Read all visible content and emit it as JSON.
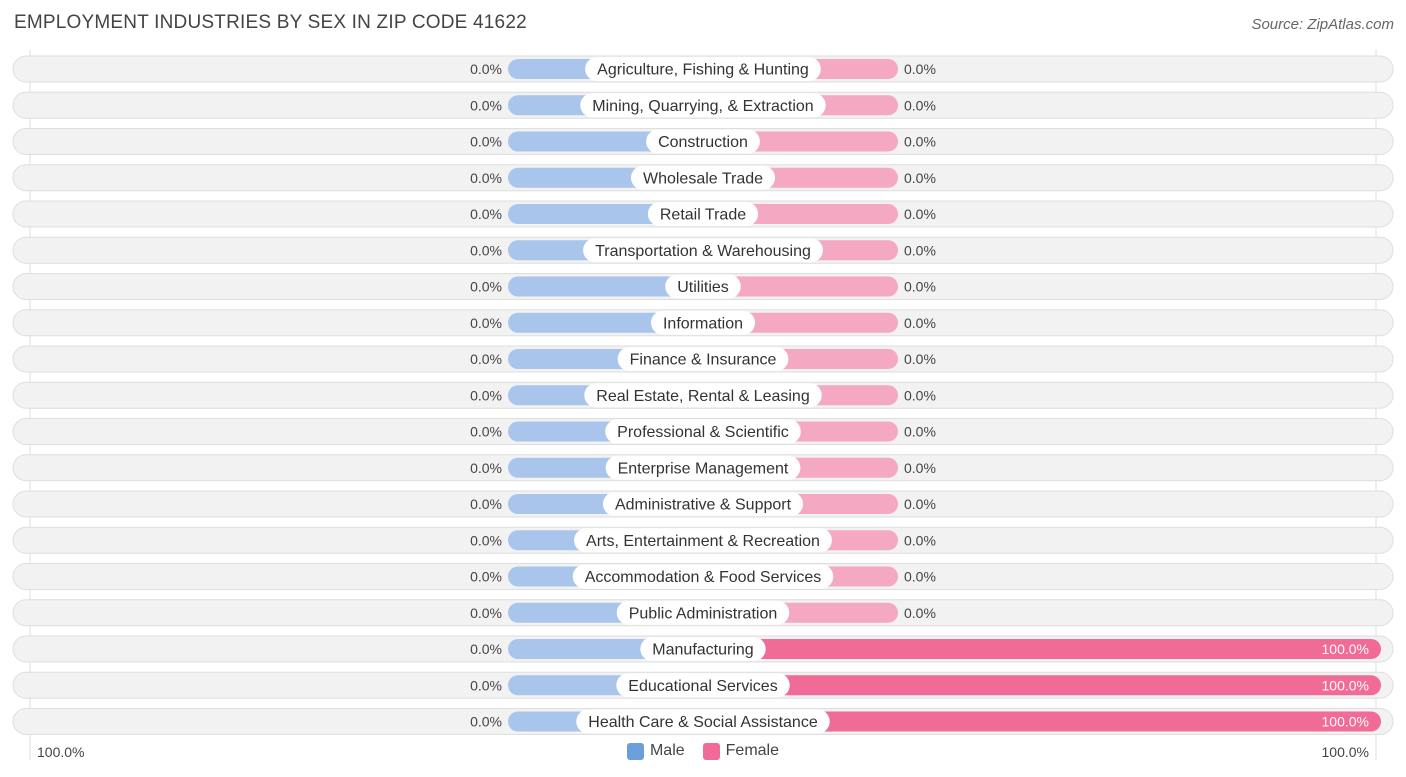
{
  "chart_data": {
    "type": "bar",
    "title": "EMPLOYMENT INDUSTRIES BY SEX IN ZIP CODE 41622",
    "source": "Source: ZipAtlas.com",
    "categories": [
      "Agriculture, Fishing & Hunting",
      "Mining, Quarrying, & Extraction",
      "Construction",
      "Wholesale Trade",
      "Retail Trade",
      "Transportation & Warehousing",
      "Utilities",
      "Information",
      "Finance & Insurance",
      "Real Estate, Rental & Leasing",
      "Professional & Scientific",
      "Enterprise Management",
      "Administrative & Support",
      "Arts, Entertainment & Recreation",
      "Accommodation & Food Services",
      "Public Administration",
      "Manufacturing",
      "Educational Services",
      "Health Care & Social Assistance"
    ],
    "series": [
      {
        "name": "Male",
        "values": [
          0,
          0,
          0,
          0,
          0,
          0,
          0,
          0,
          0,
          0,
          0,
          0,
          0,
          0,
          0,
          0,
          0,
          0,
          0
        ],
        "labels": [
          "0.0%",
          "0.0%",
          "0.0%",
          "0.0%",
          "0.0%",
          "0.0%",
          "0.0%",
          "0.0%",
          "0.0%",
          "0.0%",
          "0.0%",
          "0.0%",
          "0.0%",
          "0.0%",
          "0.0%",
          "0.0%",
          "0.0%",
          "0.0%",
          "0.0%"
        ]
      },
      {
        "name": "Female",
        "values": [
          0,
          0,
          0,
          0,
          0,
          0,
          0,
          0,
          0,
          0,
          0,
          0,
          0,
          0,
          0,
          0,
          100,
          100,
          100
        ],
        "labels": [
          "0.0%",
          "0.0%",
          "0.0%",
          "0.0%",
          "0.0%",
          "0.0%",
          "0.0%",
          "0.0%",
          "0.0%",
          "0.0%",
          "0.0%",
          "0.0%",
          "0.0%",
          "0.0%",
          "0.0%",
          "0.0%",
          "100.0%",
          "100.0%",
          "100.0%"
        ]
      }
    ],
    "axis": {
      "left_label": "100.0%",
      "right_label": "100.0%",
      "range": [
        0,
        100
      ]
    },
    "colors": {
      "male_stub": "#a9c5eb",
      "male": "#6a9fdc",
      "female_stub": "#f5a8c2",
      "female": "#f06b96",
      "row_bg": "#f2f2f2",
      "row_border": "#dedede"
    }
  }
}
